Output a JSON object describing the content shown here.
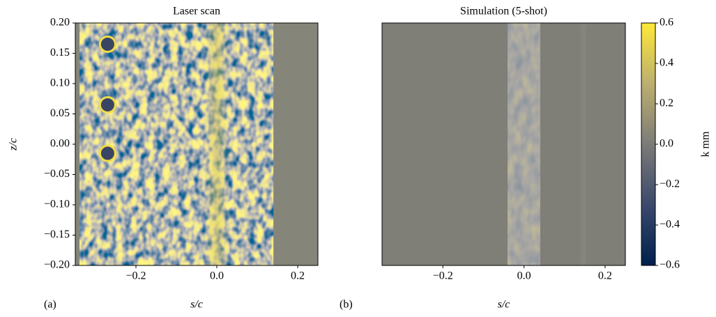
{
  "chart_data": [
    {
      "type": "heatmap",
      "title": "Laser scan",
      "xlabel": "s/c",
      "ylabel": "z/c",
      "panel_label": "(a)",
      "xlim": [
        -0.35,
        0.25
      ],
      "xticks": [
        {
          "value": -0.2,
          "label": "−0.2"
        },
        {
          "value": 0,
          "label": "0.0"
        },
        {
          "value": 0.2,
          "label": "0.2"
        }
      ],
      "ylim": [
        -0.2,
        0.2
      ],
      "yticks": [
        {
          "value": -0.2,
          "label": "−0.20"
        },
        {
          "value": -0.15,
          "label": "−0.15"
        },
        {
          "value": -0.1,
          "label": "−0.10"
        },
        {
          "value": -0.05,
          "label": "−0.05"
        },
        {
          "value": 0,
          "label": "0.00"
        },
        0.05,
        {
          "value": 0.1,
          "label": "0.10"
        },
        0.15,
        {
          "value": 0.2,
          "label": "0.20"
        }
      ]
    },
    {
      "type": "heatmap",
      "title": "Simulation (5-shot)",
      "xlabel": "s/c",
      "panel_label": "(b)",
      "xlim": [
        -0.35,
        0.25
      ],
      "xticks": [
        {
          "value": -0.2,
          "label": "−0.2"
        },
        {
          "value": 0,
          "label": "0.0"
        },
        {
          "value": 0.2,
          "label": "0.2"
        }
      ]
    },
    {
      "type": "colorbar",
      "label": "k mm",
      "lim": [
        -0.6,
        0.6
      ],
      "ticks": [
        {
          "value": -0.6,
          "label": "−0.6"
        },
        {
          "value": -0.4,
          "label": "−0.4"
        },
        {
          "value": -0.2,
          "label": "−0.2"
        },
        {
          "value": 0,
          "label": "0.0"
        },
        0.2,
        0.4,
        0.6
      ]
    }
  ]
}
